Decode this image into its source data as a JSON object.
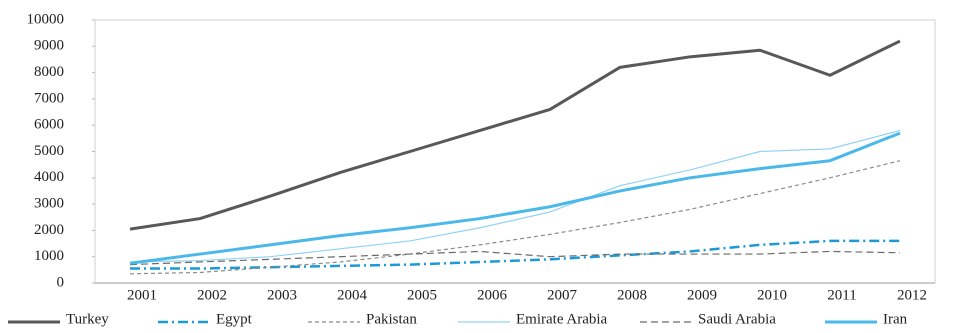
{
  "chart_data": {
    "type": "line",
    "categories": [
      "2001",
      "2002",
      "2003",
      "2004",
      "2005",
      "2006",
      "2007",
      "2008",
      "2009",
      "2010",
      "2011",
      "2012"
    ],
    "series": [
      {
        "name": "Turkey",
        "color": "#585858",
        "width": 3,
        "dash": "none",
        "values": [
          2050,
          2450,
          3300,
          4200,
          5000,
          5800,
          6600,
          8200,
          8600,
          8850,
          7900,
          9200
        ]
      },
      {
        "name": "Egypt",
        "color": "#1c9ad8",
        "width": 2.5,
        "dash": "10 4 2 4",
        "values": [
          550,
          550,
          600,
          650,
          700,
          800,
          900,
          1050,
          1200,
          1450,
          1600,
          1600
        ]
      },
      {
        "name": "Pakistan",
        "color": "#8a8a8a",
        "width": 1.2,
        "dash": "4 3",
        "values": [
          350,
          400,
          600,
          800,
          1100,
          1450,
          1850,
          2300,
          2800,
          3400,
          4000,
          4650
        ]
      },
      {
        "name": "Emirate Arabia",
        "color": "#92d3f2",
        "width": 1.2,
        "dash": "none",
        "values": [
          800,
          850,
          1000,
          1300,
          1600,
          2100,
          2700,
          3700,
          4300,
          5000,
          5100,
          5800
        ]
      },
      {
        "name": "Saudi Arabia",
        "color": "#6a6a6a",
        "width": 1.2,
        "dash": "7 4",
        "values": [
          700,
          800,
          900,
          1000,
          1100,
          1200,
          1000,
          1100,
          1100,
          1100,
          1200,
          1150
        ]
      },
      {
        "name": "Iran",
        "color": "#4bb8ea",
        "width": 3,
        "dash": "none",
        "values": [
          750,
          1100,
          1450,
          1800,
          2100,
          2450,
          2900,
          3500,
          4000,
          4350,
          4650,
          5700
        ]
      }
    ],
    "ylim": [
      0,
      10000
    ],
    "yticks": [
      0,
      1000,
      2000,
      3000,
      4000,
      5000,
      6000,
      7000,
      8000,
      9000,
      10000
    ]
  }
}
